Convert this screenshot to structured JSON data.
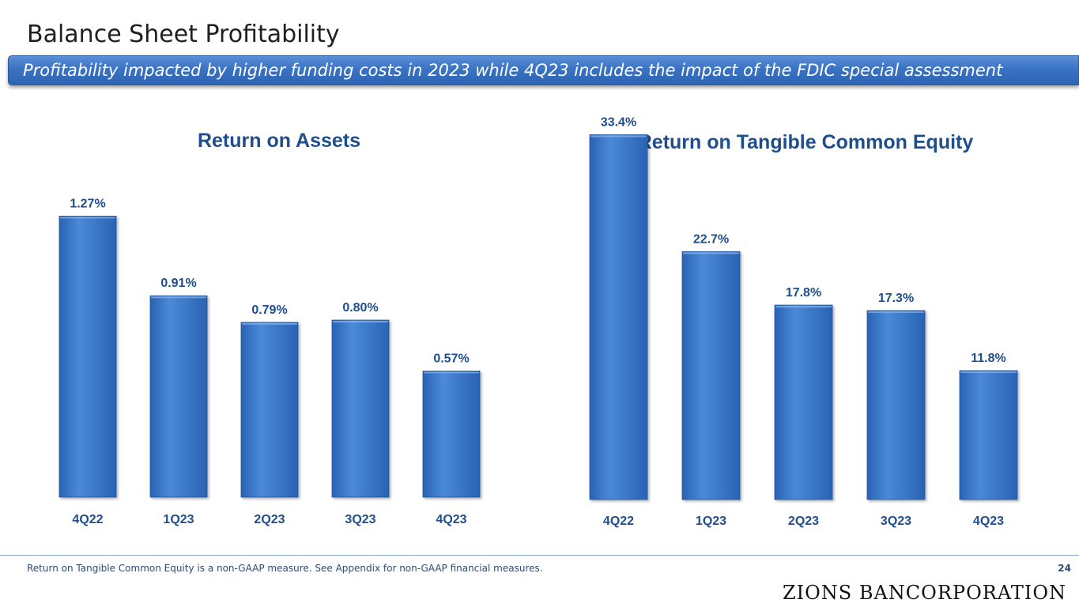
{
  "page": {
    "title": "Balance Sheet Profitability",
    "banner": "Profitability impacted by higher funding costs in 2023 while 4Q23 includes the impact of the FDIC special assessment",
    "footnote": "Return on Tangible Common Equity is a non-GAAP measure. See Appendix for non-GAAP financial measures.",
    "page_number": "24",
    "logo_text": "ZIONS BANCORPORATION"
  },
  "colors": {
    "bar_light": "#4a8ad8",
    "bar_dark": "#2a62b4",
    "label": "#1f4e8c",
    "title": "#1f4e8c"
  },
  "chart_data": [
    {
      "type": "bar",
      "title": "Return on Assets",
      "categories": [
        "4Q22",
        "1Q23",
        "2Q23",
        "3Q23",
        "4Q23"
      ],
      "values": [
        1.27,
        0.91,
        0.79,
        0.8,
        0.57
      ],
      "labels": [
        "1.27%",
        "0.91%",
        "0.79%",
        "0.80%",
        "0.57%"
      ],
      "unit": "%",
      "ylim": [
        0,
        1.9
      ],
      "xlabel": "",
      "ylabel": "",
      "grid": false
    },
    {
      "type": "bar",
      "title": "Return on Tangible Common Equity",
      "categories": [
        "4Q22",
        "1Q23",
        "2Q23",
        "3Q23",
        "4Q23"
      ],
      "values": [
        33.4,
        22.7,
        17.8,
        17.3,
        11.8
      ],
      "labels": [
        "33.4%",
        "22.7%",
        "17.8%",
        "17.3%",
        "11.8%"
      ],
      "unit": "%",
      "ylim": [
        0,
        38.5
      ],
      "xlabel": "",
      "ylabel": "",
      "grid": false
    }
  ]
}
